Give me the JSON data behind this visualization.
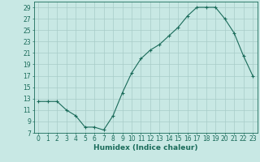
{
  "x": [
    0,
    1,
    2,
    3,
    4,
    5,
    6,
    7,
    8,
    9,
    10,
    11,
    12,
    13,
    14,
    15,
    16,
    17,
    18,
    19,
    20,
    21,
    22,
    23
  ],
  "y": [
    12.5,
    12.5,
    12.5,
    11,
    10,
    8,
    8,
    7.5,
    10,
    14,
    17.5,
    20,
    21.5,
    22.5,
    24,
    25.5,
    27.5,
    29,
    29,
    29,
    27,
    24.5,
    20.5,
    17
  ],
  "line_color": "#1a6b5a",
  "marker": "+",
  "bg_color": "#c8e8e4",
  "grid_color": "#a8ccc8",
  "xlabel": "Humidex (Indice chaleur)",
  "xlim": [
    -0.5,
    23.5
  ],
  "ylim": [
    7,
    30
  ],
  "yticks": [
    7,
    9,
    11,
    13,
    15,
    17,
    19,
    21,
    23,
    25,
    27,
    29
  ],
  "xticks": [
    0,
    1,
    2,
    3,
    4,
    5,
    6,
    7,
    8,
    9,
    10,
    11,
    12,
    13,
    14,
    15,
    16,
    17,
    18,
    19,
    20,
    21,
    22,
    23
  ],
  "tick_color": "#1a6b5a",
  "axis_color": "#1a6b5a",
  "label_fontsize": 5.5,
  "xlabel_fontsize": 6.5
}
